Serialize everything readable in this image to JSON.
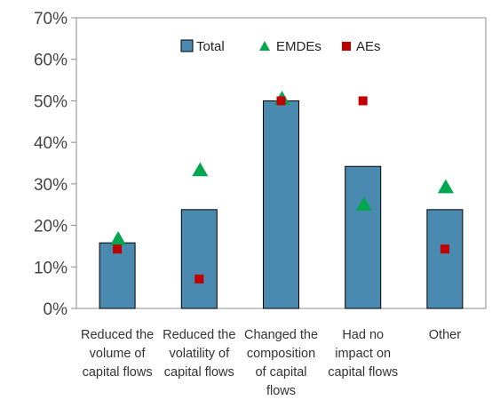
{
  "chart_data": {
    "type": "bar",
    "ylim": [
      0,
      70
    ],
    "yticks": [
      "0%",
      "10%",
      "20%",
      "30%",
      "40%",
      "50%",
      "60%",
      "70%"
    ],
    "y_tick_values": [
      0,
      10,
      20,
      30,
      40,
      50,
      60,
      70
    ],
    "grid": false,
    "legend_position": "top-center",
    "categories": [
      [
        "Reduced the",
        "volume of",
        "capital flows"
      ],
      [
        "Reduced the",
        "volatility of",
        "capital flows"
      ],
      [
        "Changed the",
        "composition",
        "of capital",
        "flows"
      ],
      [
        "Had no",
        "impact on",
        "capital flows"
      ],
      [
        "Other"
      ]
    ],
    "series": [
      {
        "name": "Total",
        "kind": "bar",
        "color": "#4a89b0",
        "values": [
          15.8,
          23.8,
          50,
          34.2,
          23.8
        ]
      },
      {
        "name": "EMDEs",
        "kind": "triangle",
        "color": "#00a650",
        "values": [
          16.7,
          33.3,
          50.5,
          25,
          29.2
        ]
      },
      {
        "name": "AEs",
        "kind": "square",
        "color": "#c00000",
        "values": [
          14.3,
          7.1,
          50,
          50,
          14.3
        ]
      }
    ]
  }
}
